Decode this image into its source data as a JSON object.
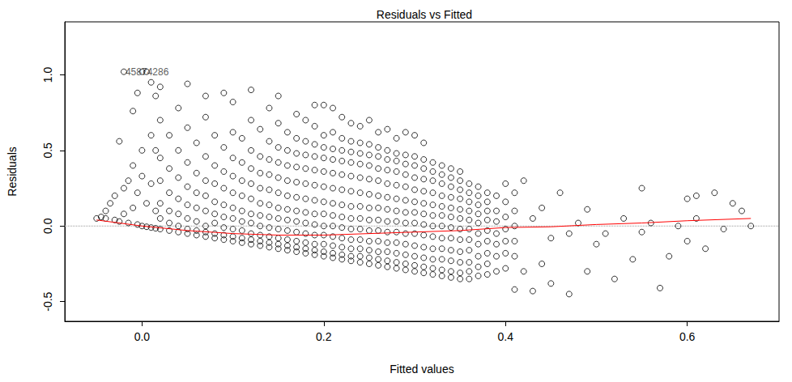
{
  "chart_data": {
    "type": "scatter",
    "title": "Residuals vs Fitted",
    "x_label": "Fitted values",
    "y_label": "Residuals",
    "xlim": [
      -0.085,
      0.701
    ],
    "ylim": [
      -0.63,
      1.35
    ],
    "xticks": [
      {
        "value": 0,
        "label": "0.0"
      },
      0.2,
      0.4,
      0.6
    ],
    "yticks": [
      -0.5,
      {
        "value": 0,
        "label": "0.0"
      },
      0.5,
      {
        "value": 1,
        "label": "1.0"
      }
    ],
    "grid": false,
    "annotations": [
      {
        "text": "45874286",
        "x": -0.02,
        "y": 1.02
      }
    ],
    "series": [
      {
        "type": "scatter",
        "marker": "circle",
        "color": "#000000",
        "x": [
          -0.05,
          -0.045,
          -0.04,
          -0.04,
          -0.035,
          -0.03,
          -0.03,
          -0.025,
          -0.025,
          -0.02,
          -0.02,
          -0.02,
          -0.015,
          -0.015,
          -0.01,
          -0.01,
          -0.01,
          -0.005,
          -0.005,
          -0.005,
          0,
          0,
          0,
          0,
          0.005,
          0.005,
          0.005,
          0.01,
          0.01,
          0.01,
          0.01,
          0.015,
          0.015,
          0.015,
          0.015,
          0.02,
          0.02,
          0.02,
          0.02,
          0.02,
          0.02,
          0.02,
          0.03,
          0.03,
          0.03,
          0.03,
          0.03,
          0.03,
          0.04,
          0.04,
          0.04,
          0.04,
          0.04,
          0.04,
          0.04,
          0.05,
          0.05,
          0.05,
          0.05,
          0.05,
          0.05,
          0.05,
          0.05,
          0.06,
          0.06,
          0.06,
          0.06,
          0.06,
          0.06,
          0.06,
          0.07,
          0.07,
          0.07,
          0.07,
          0.07,
          0.07,
          0.07,
          0.07,
          0.07,
          0.08,
          0.08,
          0.08,
          0.08,
          0.08,
          0.08,
          0.08,
          0.08,
          0.09,
          0.09,
          0.09,
          0.09,
          0.09,
          0.09,
          0.09,
          0.09,
          0.09,
          0.1,
          0.1,
          0.1,
          0.1,
          0.1,
          0.1,
          0.1,
          0.1,
          0.1,
          0.1,
          0.11,
          0.11,
          0.11,
          0.11,
          0.11,
          0.11,
          0.11,
          0.11,
          0.11,
          0.12,
          0.12,
          0.12,
          0.12,
          0.12,
          0.12,
          0.12,
          0.12,
          0.12,
          0.12,
          0.12,
          0.13,
          0.13,
          0.13,
          0.13,
          0.13,
          0.13,
          0.13,
          0.13,
          0.13,
          0.13,
          0.14,
          0.14,
          0.14,
          0.14,
          0.14,
          0.14,
          0.14,
          0.14,
          0.14,
          0.14,
          0.14,
          0.15,
          0.15,
          0.15,
          0.15,
          0.15,
          0.15,
          0.15,
          0.15,
          0.15,
          0.15,
          0.15,
          0.15,
          0.16,
          0.16,
          0.16,
          0.16,
          0.16,
          0.16,
          0.16,
          0.16,
          0.16,
          0.16,
          0.16,
          0.17,
          0.17,
          0.17,
          0.17,
          0.17,
          0.17,
          0.17,
          0.17,
          0.17,
          0.17,
          0.17,
          0.17,
          0.18,
          0.18,
          0.18,
          0.18,
          0.18,
          0.18,
          0.18,
          0.18,
          0.18,
          0.18,
          0.18,
          0.18,
          0.19,
          0.19,
          0.19,
          0.19,
          0.19,
          0.19,
          0.19,
          0.19,
          0.19,
          0.19,
          0.19,
          0.19,
          0.19,
          0.2,
          0.2,
          0.2,
          0.2,
          0.2,
          0.2,
          0.2,
          0.2,
          0.2,
          0.2,
          0.2,
          0.2,
          0.2,
          0.21,
          0.21,
          0.21,
          0.21,
          0.21,
          0.21,
          0.21,
          0.21,
          0.21,
          0.21,
          0.21,
          0.21,
          0.21,
          0.22,
          0.22,
          0.22,
          0.22,
          0.22,
          0.22,
          0.22,
          0.22,
          0.22,
          0.22,
          0.22,
          0.22,
          0.22,
          0.23,
          0.23,
          0.23,
          0.23,
          0.23,
          0.23,
          0.23,
          0.23,
          0.23,
          0.23,
          0.23,
          0.23,
          0.23,
          0.24,
          0.24,
          0.24,
          0.24,
          0.24,
          0.24,
          0.24,
          0.24,
          0.24,
          0.24,
          0.24,
          0.24,
          0.24,
          0.25,
          0.25,
          0.25,
          0.25,
          0.25,
          0.25,
          0.25,
          0.25,
          0.25,
          0.25,
          0.25,
          0.25,
          0.25,
          0.26,
          0.26,
          0.26,
          0.26,
          0.26,
          0.26,
          0.26,
          0.26,
          0.26,
          0.26,
          0.26,
          0.26,
          0.26,
          0.27,
          0.27,
          0.27,
          0.27,
          0.27,
          0.27,
          0.27,
          0.27,
          0.27,
          0.27,
          0.27,
          0.27,
          0.27,
          0.28,
          0.28,
          0.28,
          0.28,
          0.28,
          0.28,
          0.28,
          0.28,
          0.28,
          0.28,
          0.28,
          0.28,
          0.28,
          0.29,
          0.29,
          0.29,
          0.29,
          0.29,
          0.29,
          0.29,
          0.29,
          0.29,
          0.29,
          0.29,
          0.29,
          0.29,
          0.3,
          0.3,
          0.3,
          0.3,
          0.3,
          0.3,
          0.3,
          0.3,
          0.3,
          0.3,
          0.3,
          0.3,
          0.3,
          0.31,
          0.31,
          0.31,
          0.31,
          0.31,
          0.31,
          0.31,
          0.31,
          0.31,
          0.31,
          0.31,
          0.31,
          0.31,
          0.32,
          0.32,
          0.32,
          0.32,
          0.32,
          0.32,
          0.32,
          0.32,
          0.32,
          0.32,
          0.32,
          0.32,
          0.33,
          0.33,
          0.33,
          0.33,
          0.33,
          0.33,
          0.33,
          0.33,
          0.33,
          0.33,
          0.33,
          0.33,
          0.34,
          0.34,
          0.34,
          0.34,
          0.34,
          0.34,
          0.34,
          0.34,
          0.34,
          0.34,
          0.34,
          0.34,
          0.35,
          0.35,
          0.35,
          0.35,
          0.35,
          0.35,
          0.35,
          0.35,
          0.35,
          0.35,
          0.35,
          0.35,
          0.36,
          0.36,
          0.36,
          0.36,
          0.36,
          0.36,
          0.36,
          0.36,
          0.36,
          0.36,
          0.36,
          0.37,
          0.37,
          0.37,
          0.37,
          0.37,
          0.37,
          0.37,
          0.37,
          0.37,
          0.37,
          0.38,
          0.38,
          0.38,
          0.38,
          0.38,
          0.38,
          0.38,
          0.38,
          0.38,
          0.39,
          0.39,
          0.39,
          0.39,
          0.39,
          0.39,
          0.39,
          0.4,
          0.4,
          0.4,
          0.4,
          0.4,
          0.4,
          0.4,
          0.41,
          0.41,
          0.41,
          0.41,
          0.41,
          0.41,
          0.42,
          0.42,
          0.43,
          0.43,
          0.44,
          0.44,
          0.45,
          0.45,
          0.46,
          0.47,
          0.47,
          0.48,
          0.49,
          0.49,
          0.5,
          0.51,
          0.52,
          0.53,
          0.54,
          0.55,
          0.55,
          0.56,
          0.57,
          0.58,
          0.59,
          0.6,
          0.6,
          0.61,
          0.61,
          0.62,
          0.63,
          0.64,
          0.65,
          0.66,
          0.67
        ],
        "values": [
          0.05,
          0.06,
          0.05,
          0.1,
          0.15,
          0.04,
          0.2,
          0.03,
          0.56,
          1.02,
          0.25,
          0.08,
          0.3,
          0.02,
          0.76,
          0.12,
          0.4,
          0.88,
          0.01,
          0.22,
          1.02,
          0.5,
          0.0,
          0.33,
          1.02,
          0.15,
          -0.005,
          0.95,
          0.6,
          0.28,
          -0.01,
          -0.015,
          0.1,
          0.5,
          0.86,
          -0.02,
          0.05,
          0.15,
          0.3,
          0.45,
          0.7,
          0.92,
          -0.03,
          0.02,
          0.1,
          0.22,
          0.38,
          0.6,
          -0.04,
          0.0,
          0.08,
          0.18,
          0.32,
          0.5,
          0.78,
          -0.05,
          -0.02,
          0.05,
          0.14,
          0.26,
          0.42,
          0.65,
          0.94,
          -0.06,
          -0.03,
          0.03,
          0.12,
          0.22,
          0.35,
          0.55,
          -0.07,
          -0.04,
          0.0,
          0.1,
          0.2,
          0.3,
          0.46,
          0.72,
          0.86,
          -0.08,
          -0.05,
          0.02,
          0.08,
          0.16,
          0.28,
          0.4,
          0.6,
          -0.09,
          -0.06,
          -0.01,
          0.06,
          0.14,
          0.25,
          0.36,
          0.52,
          0.88,
          -0.1,
          -0.07,
          -0.02,
          0.05,
          0.12,
          0.22,
          0.33,
          0.45,
          0.62,
          0.82,
          -0.11,
          -0.08,
          -0.03,
          0.03,
          0.1,
          0.2,
          0.3,
          0.42,
          0.58,
          -0.12,
          -0.09,
          -0.05,
          0.02,
          0.08,
          0.18,
          0.28,
          0.38,
          0.5,
          0.7,
          0.9,
          -0.13,
          -0.1,
          -0.06,
          0.0,
          0.07,
          0.15,
          0.25,
          0.35,
          0.46,
          0.64,
          -0.14,
          -0.11,
          -0.07,
          -0.01,
          0.06,
          0.14,
          0.24,
          0.34,
          0.44,
          0.56,
          0.78,
          -0.15,
          -0.12,
          -0.08,
          -0.02,
          0.05,
          0.12,
          0.22,
          0.32,
          0.42,
          0.52,
          0.68,
          0.86,
          -0.16,
          -0.13,
          -0.09,
          -0.03,
          0.04,
          0.11,
          0.2,
          0.3,
          0.4,
          0.5,
          0.62,
          -0.17,
          -0.14,
          -0.1,
          -0.04,
          0.03,
          0.1,
          0.19,
          0.29,
          0.39,
          0.48,
          0.58,
          0.74,
          -0.18,
          -0.15,
          -0.11,
          -0.05,
          0.02,
          0.09,
          0.18,
          0.28,
          0.38,
          0.47,
          0.56,
          0.7,
          -0.19,
          -0.16,
          -0.12,
          -0.06,
          0.01,
          0.08,
          0.17,
          0.27,
          0.37,
          0.46,
          0.54,
          0.66,
          0.8,
          -0.2,
          -0.17,
          -0.12,
          -0.06,
          0.0,
          0.08,
          0.16,
          0.26,
          0.36,
          0.45,
          0.52,
          0.6,
          0.8,
          -0.21,
          -0.18,
          -0.13,
          -0.07,
          0.0,
          0.07,
          0.15,
          0.25,
          0.35,
          0.44,
          0.51,
          0.62,
          0.78,
          -0.22,
          -0.19,
          -0.14,
          -0.08,
          -0.01,
          0.06,
          0.14,
          0.24,
          0.34,
          0.43,
          0.5,
          0.58,
          0.72,
          -0.23,
          -0.2,
          -0.15,
          -0.09,
          -0.02,
          0.05,
          0.13,
          0.23,
          0.33,
          0.42,
          0.49,
          0.56,
          0.68,
          -0.24,
          -0.2,
          -0.15,
          -0.09,
          -0.02,
          0.05,
          0.13,
          0.22,
          0.32,
          0.41,
          0.48,
          0.55,
          0.66,
          -0.25,
          -0.21,
          -0.16,
          -0.1,
          -0.03,
          0.04,
          0.12,
          0.21,
          0.31,
          0.4,
          0.47,
          0.54,
          0.7,
          -0.26,
          -0.22,
          -0.17,
          -0.1,
          -0.03,
          0.04,
          0.12,
          0.2,
          0.3,
          0.38,
          0.46,
          0.52,
          0.62,
          -0.27,
          -0.23,
          -0.17,
          -0.11,
          -0.04,
          0.03,
          0.11,
          0.19,
          0.28,
          0.37,
          0.44,
          0.5,
          0.64,
          -0.28,
          -0.24,
          -0.18,
          -0.11,
          -0.04,
          0.03,
          0.1,
          0.18,
          0.27,
          0.36,
          0.43,
          0.48,
          0.58,
          -0.29,
          -0.25,
          -0.19,
          -0.12,
          -0.05,
          0.02,
          0.09,
          0.17,
          0.26,
          0.34,
          0.41,
          0.47,
          0.62,
          -0.3,
          -0.26,
          -0.2,
          -0.13,
          -0.05,
          0.02,
          0.09,
          0.16,
          0.24,
          0.32,
          0.4,
          0.46,
          0.6,
          -0.31,
          -0.27,
          -0.21,
          -0.14,
          -0.06,
          0.01,
          0.08,
          0.15,
          0.23,
          0.31,
          0.38,
          0.44,
          0.55,
          -0.32,
          -0.28,
          -0.22,
          -0.15,
          -0.07,
          0.0,
          0.07,
          0.14,
          0.22,
          0.3,
          0.36,
          0.42,
          -0.33,
          -0.29,
          -0.22,
          -0.15,
          -0.08,
          0.0,
          0.07,
          0.13,
          0.2,
          0.28,
          0.34,
          0.4,
          -0.34,
          -0.3,
          -0.23,
          -0.16,
          -0.08,
          -0.01,
          0.06,
          0.12,
          0.19,
          0.26,
          0.32,
          0.38,
          -0.35,
          -0.31,
          -0.24,
          -0.17,
          -0.09,
          -0.02,
          0.05,
          0.11,
          0.18,
          0.24,
          0.3,
          0.36,
          -0.35,
          -0.3,
          -0.24,
          -0.16,
          -0.09,
          -0.02,
          0.04,
          0.1,
          0.16,
          0.22,
          0.28,
          -0.33,
          -0.27,
          -0.2,
          -0.12,
          -0.05,
          0.02,
          0.08,
          0.14,
          0.2,
          0.26,
          -0.32,
          -0.25,
          -0.18,
          -0.1,
          -0.03,
          0.04,
          0.1,
          0.16,
          0.22,
          -0.3,
          -0.2,
          -0.12,
          -0.05,
          0.03,
          0.1,
          0.2,
          -0.28,
          -0.18,
          -0.1,
          -0.02,
          0.06,
          0.16,
          0.28,
          -0.42,
          -0.2,
          -0.1,
          0.0,
          0.1,
          0.22,
          -0.3,
          0.3,
          -0.43,
          0.05,
          -0.25,
          0.12,
          -0.38,
          -0.08,
          0.22,
          -0.45,
          -0.05,
          0.02,
          -0.3,
          0.11,
          -0.12,
          -0.05,
          -0.35,
          0.05,
          -0.22,
          0.25,
          -0.04,
          0.02,
          -0.41,
          -0.2,
          0.0,
          0.18,
          -0.1,
          0.2,
          0.05,
          -0.15,
          0.22,
          -0.02,
          0.15,
          0.1,
          0.0
        ]
      },
      {
        "type": "line",
        "line_style": "dotted",
        "color": "#999999",
        "x": [
          -0.085,
          0.701
        ],
        "values": [
          0,
          0
        ]
      },
      {
        "type": "line",
        "line_style": "solid",
        "color": "#ff0000",
        "x": [
          -0.05,
          0,
          0.05,
          0.1,
          0.15,
          0.2,
          0.25,
          0.3,
          0.35,
          0.4,
          0.45,
          0.5,
          0.55,
          0.6,
          0.67
        ],
        "values": [
          0.04,
          0.0,
          -0.03,
          -0.05,
          -0.06,
          -0.06,
          -0.05,
          -0.04,
          -0.03,
          -0.01,
          -0.005,
          0.01,
          0.02,
          0.035,
          0.05
        ]
      }
    ]
  }
}
